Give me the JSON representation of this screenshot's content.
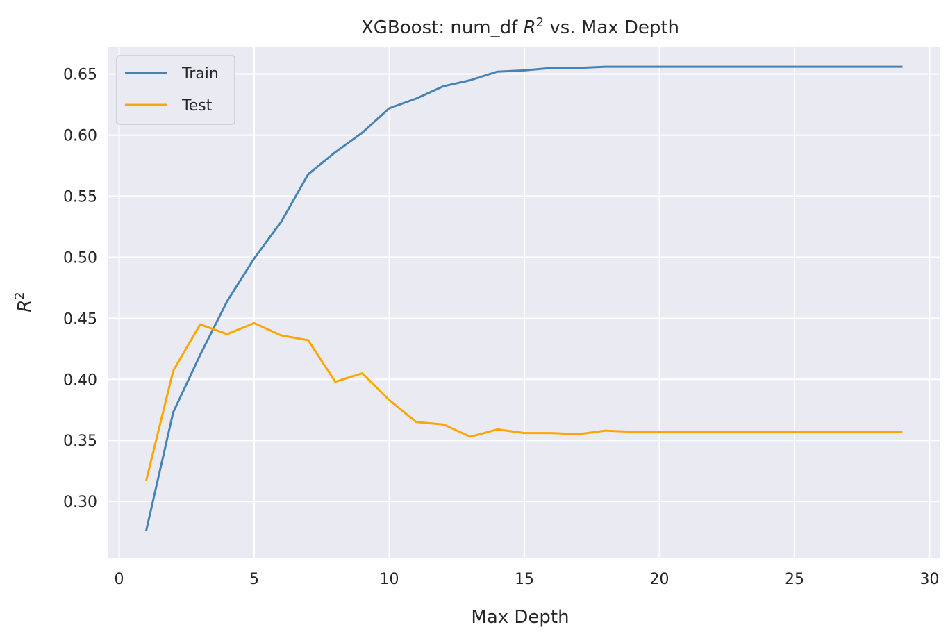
{
  "chart_data": {
    "type": "line",
    "title": "XGBoost: num_df R² vs. Max Depth",
    "title_parts": {
      "prefix": "XGBoost: num_df ",
      "symbol": "R",
      "sup": "2",
      "suffix": " vs. Max Depth"
    },
    "xlabel": "Max Depth",
    "ylabel": {
      "symbol": "R",
      "sup": "2"
    },
    "xlim": [
      -0.4,
      30.4
    ],
    "ylim": [
      0.254,
      0.672
    ],
    "x_ticks": [
      0,
      5,
      10,
      15,
      20,
      25,
      30
    ],
    "x_tick_labels": [
      "0",
      "5",
      "10",
      "15",
      "20",
      "25",
      "30"
    ],
    "y_ticks": [
      0.3,
      0.35,
      0.4,
      0.45,
      0.5,
      0.55,
      0.6,
      0.65
    ],
    "y_tick_labels": [
      "0.30",
      "0.35",
      "0.40",
      "0.45",
      "0.50",
      "0.55",
      "0.60",
      "0.65"
    ],
    "grid": true,
    "legend_position": "top-left",
    "x": [
      1,
      2,
      3,
      4,
      5,
      6,
      7,
      8,
      9,
      10,
      11,
      12,
      13,
      14,
      15,
      16,
      17,
      18,
      19,
      20,
      21,
      22,
      23,
      24,
      25,
      26,
      27,
      28,
      29
    ],
    "series": [
      {
        "name": "Train",
        "color": "#4682b4",
        "values": [
          0.276,
          0.373,
          0.42,
          0.464,
          0.499,
          0.529,
          0.568,
          0.586,
          0.602,
          0.622,
          0.63,
          0.64,
          0.645,
          0.652,
          0.653,
          0.655,
          0.655,
          0.656,
          0.656,
          0.656,
          0.656,
          0.656,
          0.656,
          0.656,
          0.656,
          0.656,
          0.656,
          0.656,
          0.656
        ]
      },
      {
        "name": "Test",
        "color": "#ffa500",
        "values": [
          0.317,
          0.407,
          0.445,
          0.437,
          0.446,
          0.436,
          0.432,
          0.398,
          0.405,
          0.383,
          0.365,
          0.363,
          0.353,
          0.359,
          0.356,
          0.356,
          0.355,
          0.358,
          0.357,
          0.357,
          0.357,
          0.357,
          0.357,
          0.357,
          0.357,
          0.357,
          0.357,
          0.357,
          0.357
        ]
      }
    ]
  }
}
